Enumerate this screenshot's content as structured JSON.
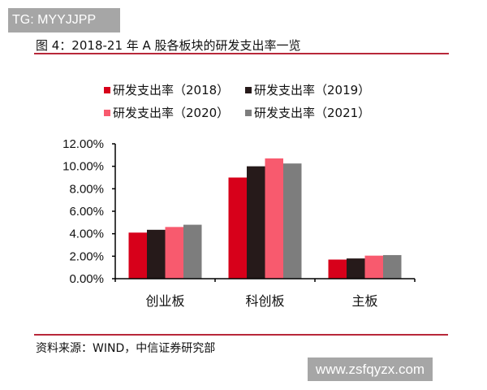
{
  "watermarks": {
    "top": "TG: MYYJJPP",
    "bottom": "www.zsfqyzx.com"
  },
  "figure": {
    "title": "图 4：2018-21 年 A 股各板块的研发支出率一览",
    "source": "资料来源：WIND，中信证券研究部"
  },
  "chart_data": {
    "type": "bar",
    "title": "图 4：2018-21 年 A 股各板块的研发支出率一览",
    "xlabel": "",
    "ylabel": "",
    "categories": [
      "创业板",
      "科创板",
      "主板"
    ],
    "series": [
      {
        "name": "研发支出率（2018）",
        "color": "#d7001a",
        "values": [
          4.1,
          9.0,
          1.7
        ]
      },
      {
        "name": "研发支出率（2019）",
        "color": "#261a1a",
        "values": [
          4.35,
          10.0,
          1.8
        ]
      },
      {
        "name": "研发支出率（2020）",
        "color": "#f85a6e",
        "values": [
          4.6,
          10.7,
          2.05
        ]
      },
      {
        "name": "研发支出率（2021）",
        "color": "#7d7d7d",
        "values": [
          4.8,
          10.25,
          2.1
        ]
      }
    ],
    "ylim": [
      0,
      12
    ],
    "yticks": [
      "0.00%",
      "2.00%",
      "4.00%",
      "6.00%",
      "8.00%",
      "10.00%",
      "12.00%"
    ],
    "grid": false,
    "legend_position": "top"
  }
}
